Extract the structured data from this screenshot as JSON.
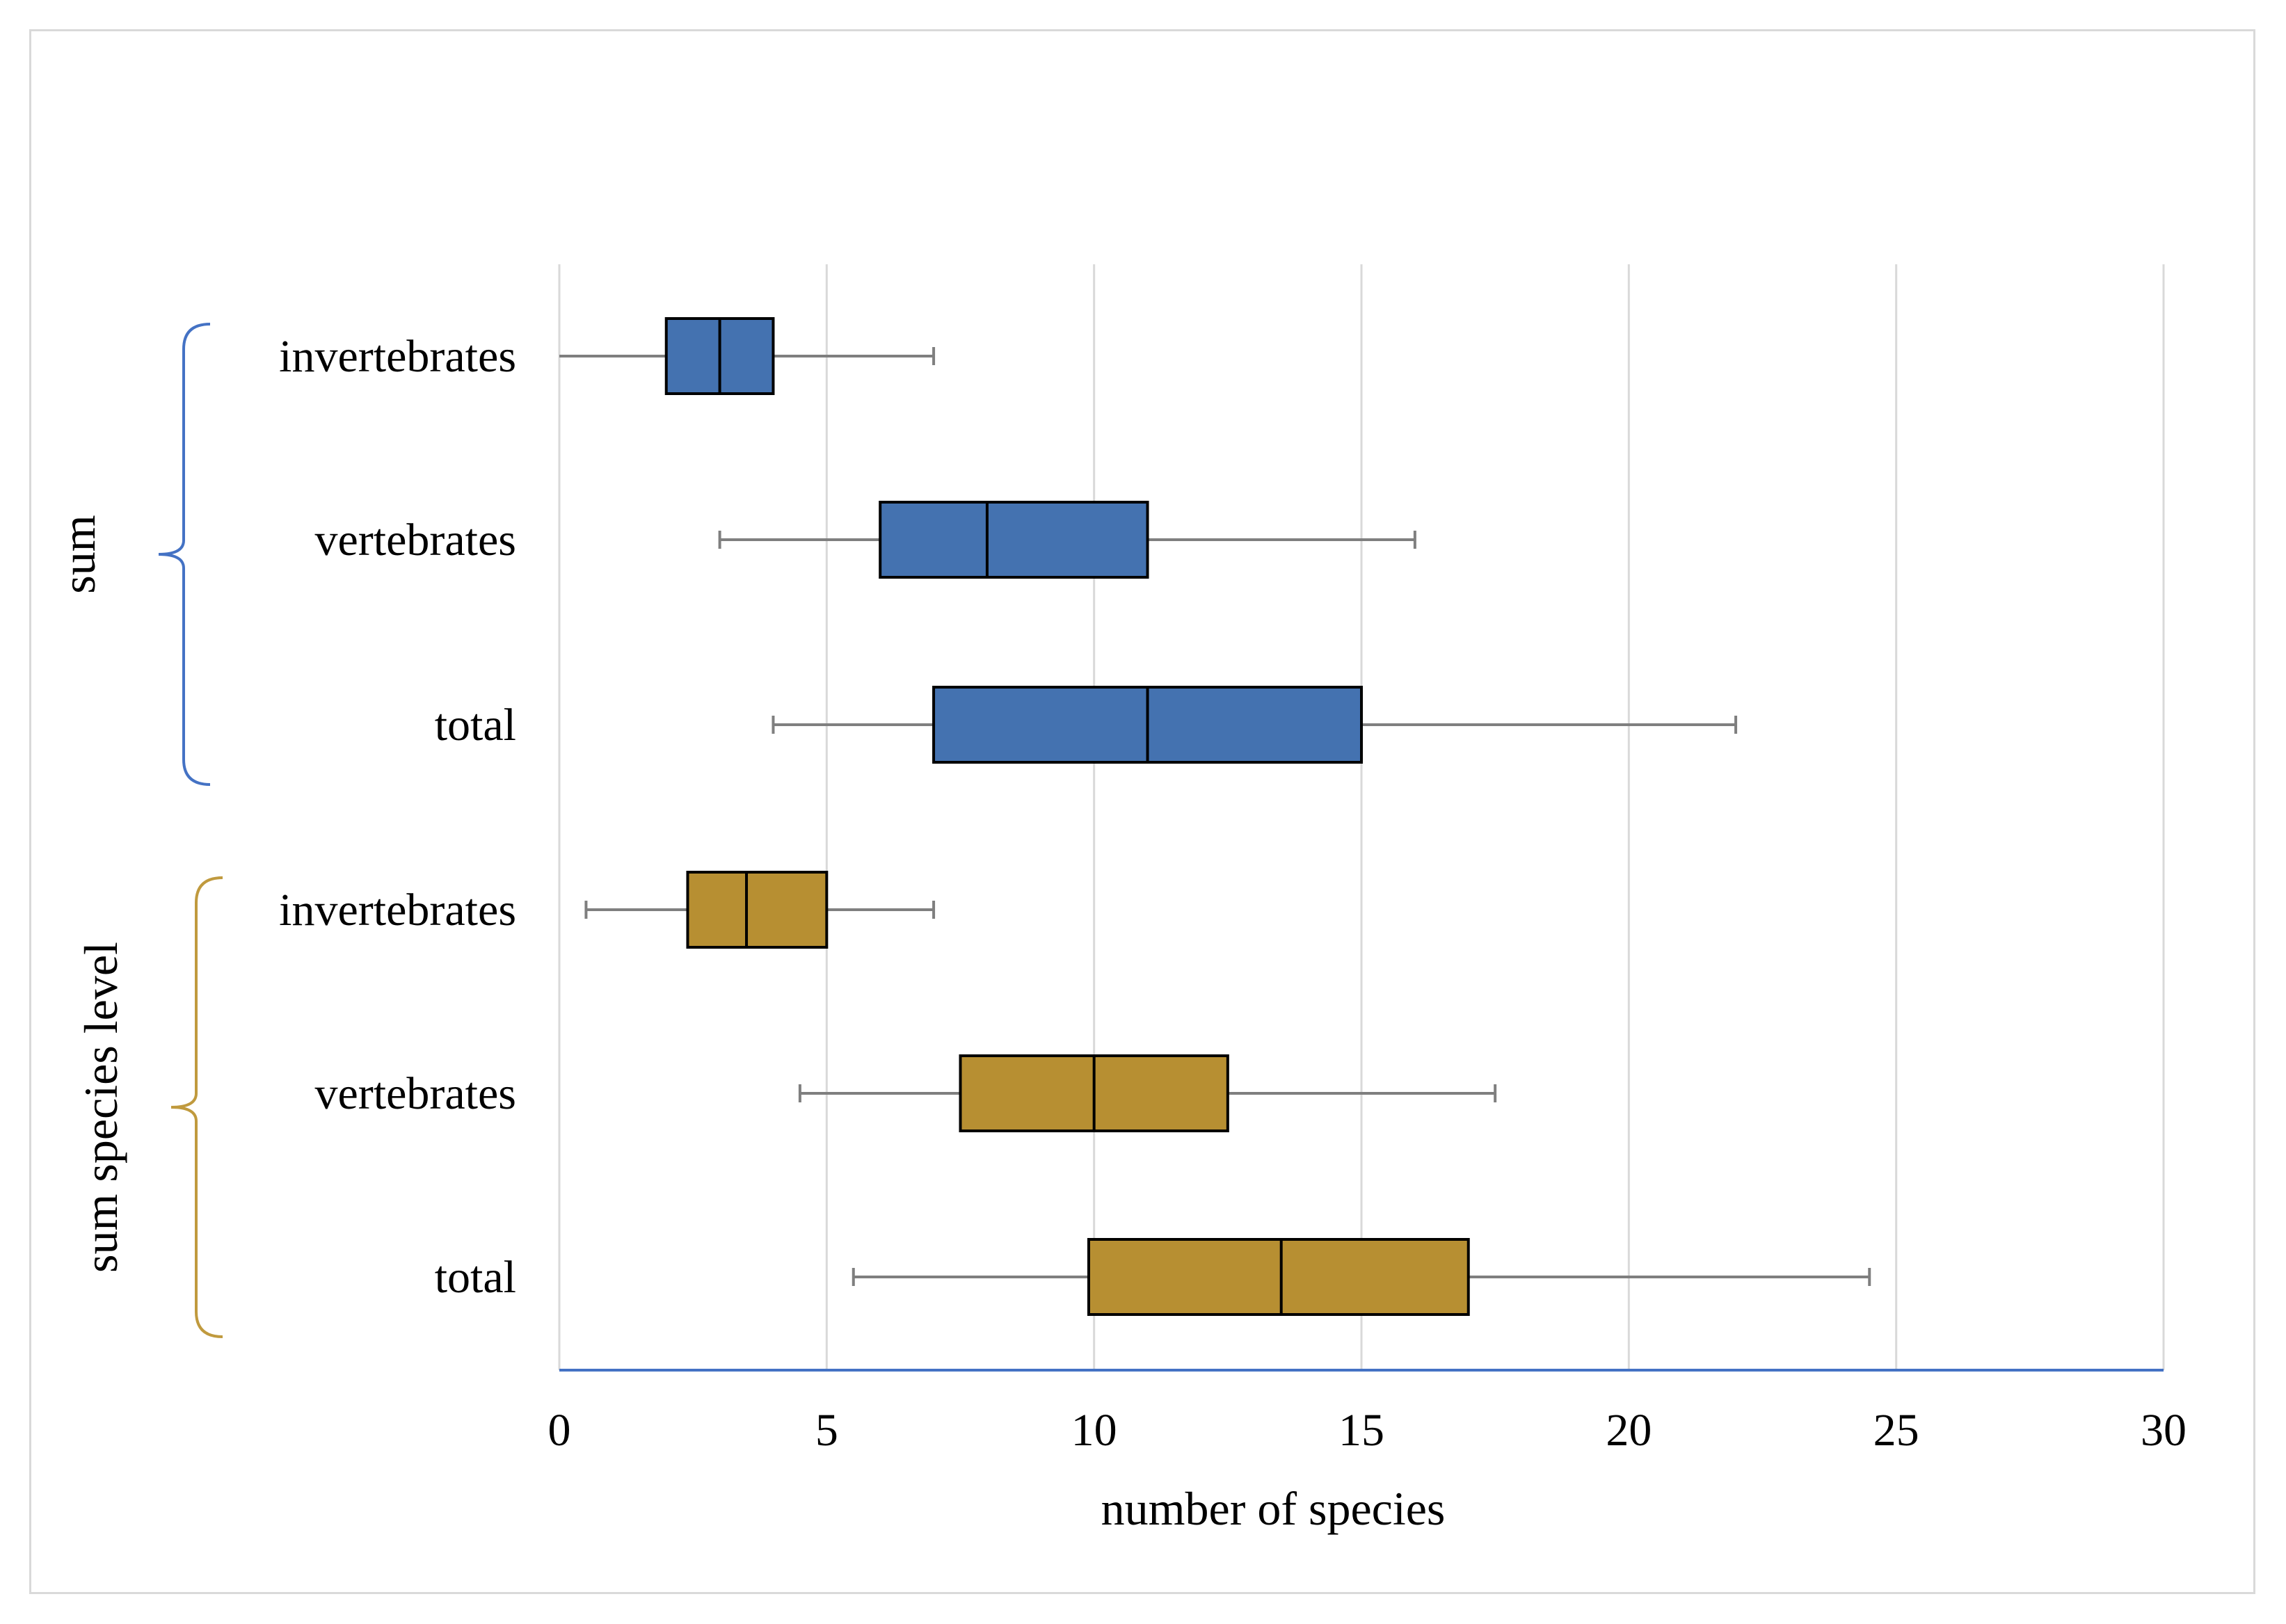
{
  "chart_data": {
    "type": "boxplot",
    "orientation": "horizontal",
    "title": "",
    "xlabel": "number of species",
    "ylabel": "",
    "xlim": [
      0,
      30
    ],
    "xticks": [
      "0",
      "5",
      "10",
      "15",
      "20",
      "25",
      "30"
    ],
    "grid": "vertical",
    "legend": "none",
    "groups": [
      {
        "name": "sum",
        "color": "#4472b0",
        "bracket_color": "#4472c4",
        "boxes": [
          {
            "category": "invertebrates",
            "min": 0,
            "q1": 2,
            "median": 3,
            "q3": 4,
            "max": 7
          },
          {
            "category": "vertebrates",
            "min": 3,
            "q1": 6,
            "median": 8,
            "q3": 11,
            "max": 16
          },
          {
            "category": "total",
            "min": 4,
            "q1": 7,
            "median": 11,
            "q3": 15,
            "max": 22
          }
        ]
      },
      {
        "name": "sum species level",
        "color": "#b78f32",
        "bracket_color": "#c09a3e",
        "boxes": [
          {
            "category": "invertebrates",
            "min": 0.5,
            "q1": 2.4,
            "median": 3.5,
            "q3": 5,
            "max": 7
          },
          {
            "category": "vertebrates",
            "min": 4.5,
            "q1": 7.5,
            "median": 10,
            "q3": 12.5,
            "max": 17.5
          },
          {
            "category": "total",
            "min": 5.5,
            "q1": 9.9,
            "median": 13.5,
            "q3": 17,
            "max": 24.5
          }
        ]
      }
    ]
  }
}
